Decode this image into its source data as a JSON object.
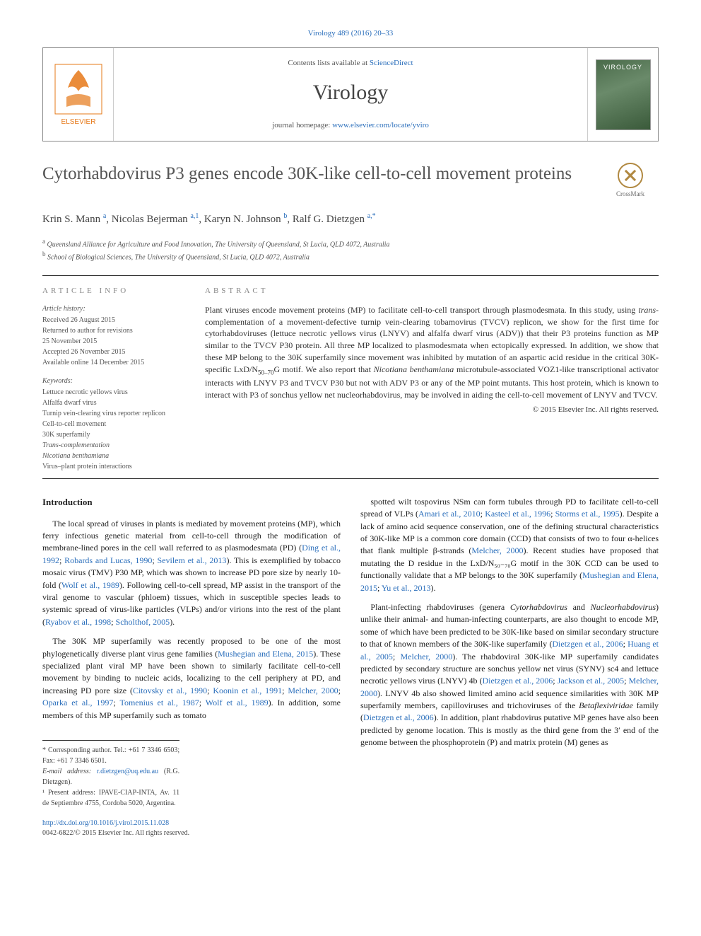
{
  "top_citation": "Virology 489 (2016) 20–33",
  "header": {
    "contents_prefix": "Contents lists available at ",
    "contents_link": "ScienceDirect",
    "journal": "Virology",
    "homepage_prefix": "journal homepage: ",
    "homepage_url": "www.elsevier.com/locate/yviro",
    "cover_label": "VIROLOGY",
    "publisher": "ELSEVIER"
  },
  "title": "Cytorhabdovirus P3 genes encode 30K-like cell-to-cell movement proteins",
  "crossmark_label": "CrossMark",
  "authors_html": "Krin S. Mann <sup>a</sup>, Nicolas Bejerman <sup>a,1</sup>, Karyn N. Johnson <sup>b</sup>, Ralf G. Dietzgen <sup>a,*</sup>",
  "affiliations": [
    {
      "sup": "a",
      "text": "Queensland Alliance for Agriculture and Food Innovation, The University of Queensland, St Lucia, QLD 4072, Australia"
    },
    {
      "sup": "b",
      "text": "School of Biological Sciences, The University of Queensland, St Lucia, QLD 4072, Australia"
    }
  ],
  "info": {
    "heading": "ARTICLE INFO",
    "history_label": "Article history:",
    "history": [
      "Received 26 August 2015",
      "Returned to author for revisions",
      "25 November 2015",
      "Accepted 26 November 2015",
      "Available online 14 December 2015"
    ],
    "keywords_label": "Keywords:",
    "keywords": [
      "Lettuce necrotic yellows virus",
      "Alfalfa dwarf virus",
      "Turnip vein-clearing virus reporter replicon",
      "Cell-to-cell movement",
      "30K superfamily",
      "Trans-complementation",
      "Nicotiana benthamiana",
      "Virus–plant protein interactions"
    ]
  },
  "abstract": {
    "heading": "ABSTRACT",
    "text": "Plant viruses encode movement proteins (MP) to facilitate cell-to-cell transport through plasmodesmata. In this study, using trans-complementation of a movement-defective turnip vein-clearing tobamovirus (TVCV) replicon, we show for the first time for cytorhabdoviruses (lettuce necrotic yellows virus (LNYV) and alfalfa dwarf virus (ADV)) that their P3 proteins function as MP similar to the TVCV P30 protein. All three MP localized to plasmodesmata when ectopically expressed. In addition, we show that these MP belong to the 30K superfamily since movement was inhibited by mutation of an aspartic acid residue in the critical 30K-specific LxD/N₅₀₋₇₀G motif. We also report that Nicotiana benthamiana microtubule-associated VOZ1-like transcriptional activator interacts with LNYV P3 and TVCV P30 but not with ADV P3 or any of the MP point mutants. This host protein, which is known to interact with P3 of sonchus yellow net nucleorhabdovirus, may be involved in aiding the cell-to-cell movement of LNYV and TVCV.",
    "copyright": "© 2015 Elsevier Inc. All rights reserved."
  },
  "intro_heading": "Introduction",
  "left_paras": [
    "The local spread of viruses in plants is mediated by movement proteins (MP), which ferry infectious genetic material from cell-to-cell through the modification of membrane-lined pores in the cell wall referred to as plasmodesmata (PD) (<a>Ding et al., 1992</a>; <a>Robards and Lucas, 1990</a>; <a>Sevilem et al., 2013</a>). This is exemplified by tobacco mosaic virus (TMV) P30 MP, which was shown to increase PD pore size by nearly 10-fold (<a>Wolf et al., 1989</a>). Following cell-to-cell spread, MP assist in the transport of the viral genome to vascular (phloem) tissues, which in susceptible species leads to systemic spread of virus-like particles (VLPs) and/or virions into the rest of the plant (<a>Ryabov et al., 1998</a>; <a>Scholthof, 2005</a>).",
    "The 30K MP superfamily was recently proposed to be one of the most phylogenetically diverse plant virus gene families (<a>Mushegian and Elena, 2015</a>). These specialized plant viral MP have been shown to similarly facilitate cell-to-cell movement by binding to nucleic acids, localizing to the cell periphery at PD, and increasing PD pore size (<a>Citovsky et al., 1990</a>; <a>Koonin et al., 1991</a>; <a>Melcher, 2000</a>; <a>Oparka et al., 1997</a>; <a>Tomenius et al., 1987</a>; <a>Wolf et al., 1989</a>). In addition, some members of this MP superfamily such as tomato"
  ],
  "right_paras": [
    "spotted wilt tospovirus NSm can form tubules through PD to facilitate cell-to-cell spread of VLPs (<a>Amari et al., 2010</a>; <a>Kasteel et al., 1996</a>; <a>Storms et al., 1995</a>). Despite a lack of amino acid sequence conservation, one of the defining structural characteristics of 30K-like MP is a common core domain (CCD) that consists of two to four α-helices that flank multiple β-strands (<a>Melcher, 2000</a>). Recent studies have proposed that mutating the D residue in the LxD/N₅₀₋₇₀G motif in the 30K CCD can be used to functionally validate that a MP belongs to the 30K superfamily (<a>Mushegian and Elena, 2015</a>; <a>Yu et al., 2013</a>).",
    "Plant-infecting rhabdoviruses (genera <span class=\"italic\">Cytorhabdovirus</span> and <span class=\"italic\">Nucleorhabdovirus</span>) unlike their animal- and human-infecting counterparts, are also thought to encode MP, some of which have been predicted to be 30K-like based on similar secondary structure to that of known members of the 30K-like superfamily (<a>Dietzgen et al., 2006</a>; <a>Huang et al., 2005</a>; <a>Melcher, 2000</a>). The rhabdoviral 30K-like MP superfamily candidates predicted by secondary structure are sonchus yellow net virus (SYNV) sc4 and lettuce necrotic yellows virus (LNYV) 4b (<a>Dietzgen et al., 2006</a>; <a>Jackson et al., 2005</a>; <a>Melcher, 2000</a>). LNYV 4b also showed limited amino acid sequence similarities with 30K MP superfamily members, capilloviruses and trichoviruses of the <span class=\"italic\">Betaflexiviridae</span> family (<a>Dietzgen et al., 2006</a>). In addition, plant rhabdovirus putative MP genes have also been predicted by genome location. This is mostly as the third gene from the 3′ end of the genome between the phosphoprotein (P) and matrix protein (M) genes as"
  ],
  "footnotes": {
    "corr": "* Corresponding author. Tel.: +61 7 3346 6503; Fax: +61 7 3346 6501.",
    "email_label": "E-mail address: ",
    "email": "r.dietzgen@uq.edu.au",
    "email_name": " (R.G. Dietzgen).",
    "present": "¹ Present address: IPAVE-CIAP-INTA, Av. 11 de Septiembre 4755, Cordoba 5020, Argentina."
  },
  "doi": {
    "url": "http://dx.doi.org/10.1016/j.virol.2015.11.028",
    "issn_line": "0042-6822/© 2015 Elsevier Inc. All rights reserved."
  },
  "colors": {
    "link": "#2a6ebb",
    "text": "#333333",
    "rule": "#333333",
    "muted": "#888888"
  }
}
